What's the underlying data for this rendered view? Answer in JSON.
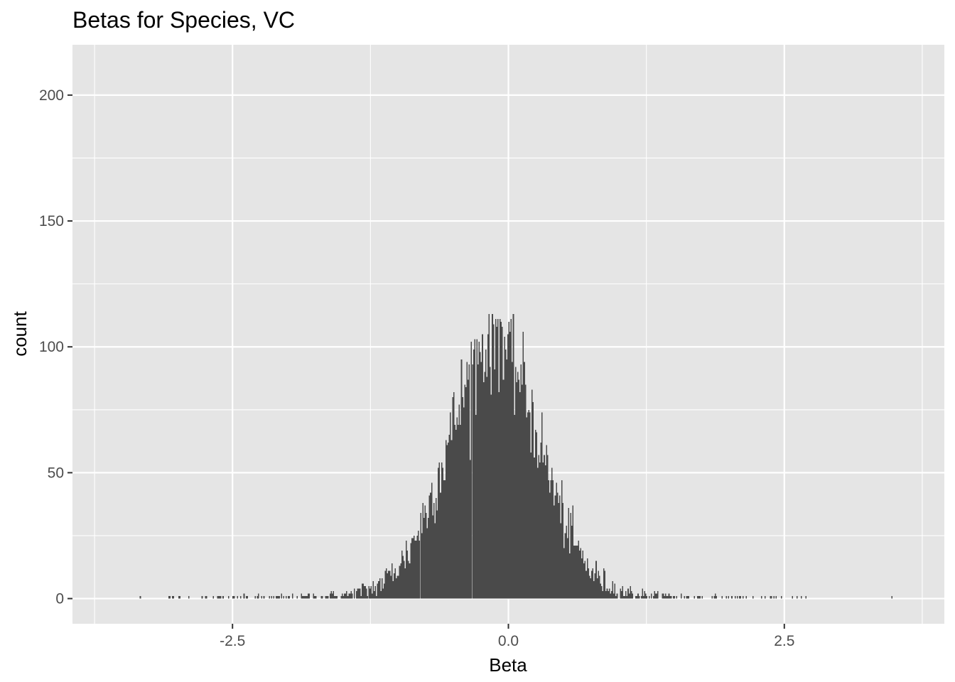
{
  "chart_data": {
    "type": "bar",
    "subtype": "histogram",
    "title": "Betas for Species, VC",
    "xlabel": "Beta",
    "ylabel": "count",
    "xlim": [
      -3.95,
      3.95
    ],
    "ylim": [
      -10,
      220
    ],
    "x_ticks": [
      -2.5,
      0.0,
      2.5
    ],
    "x_tick_labels": [
      "-2.5",
      "0.0",
      "2.5"
    ],
    "y_ticks": [
      0,
      50,
      100,
      150,
      200
    ],
    "y_tick_labels": [
      "0",
      "50",
      "100",
      "150",
      "200"
    ],
    "grid": true,
    "legend": "none",
    "bin_width": 0.01,
    "bin_range": [
      -3.85,
      3.85
    ],
    "bar_color": "#4a4a4a",
    "panel_background": "#e5e5e5",
    "grid_color": "#ffffff",
    "density_profile": {
      "center": -0.12,
      "peak_count": 96,
      "sigma_left": 0.42,
      "sigma_right": 0.4,
      "tail_amplitude": 8.5,
      "tail_scale": 0.65,
      "approx_max_count": 113
    }
  }
}
